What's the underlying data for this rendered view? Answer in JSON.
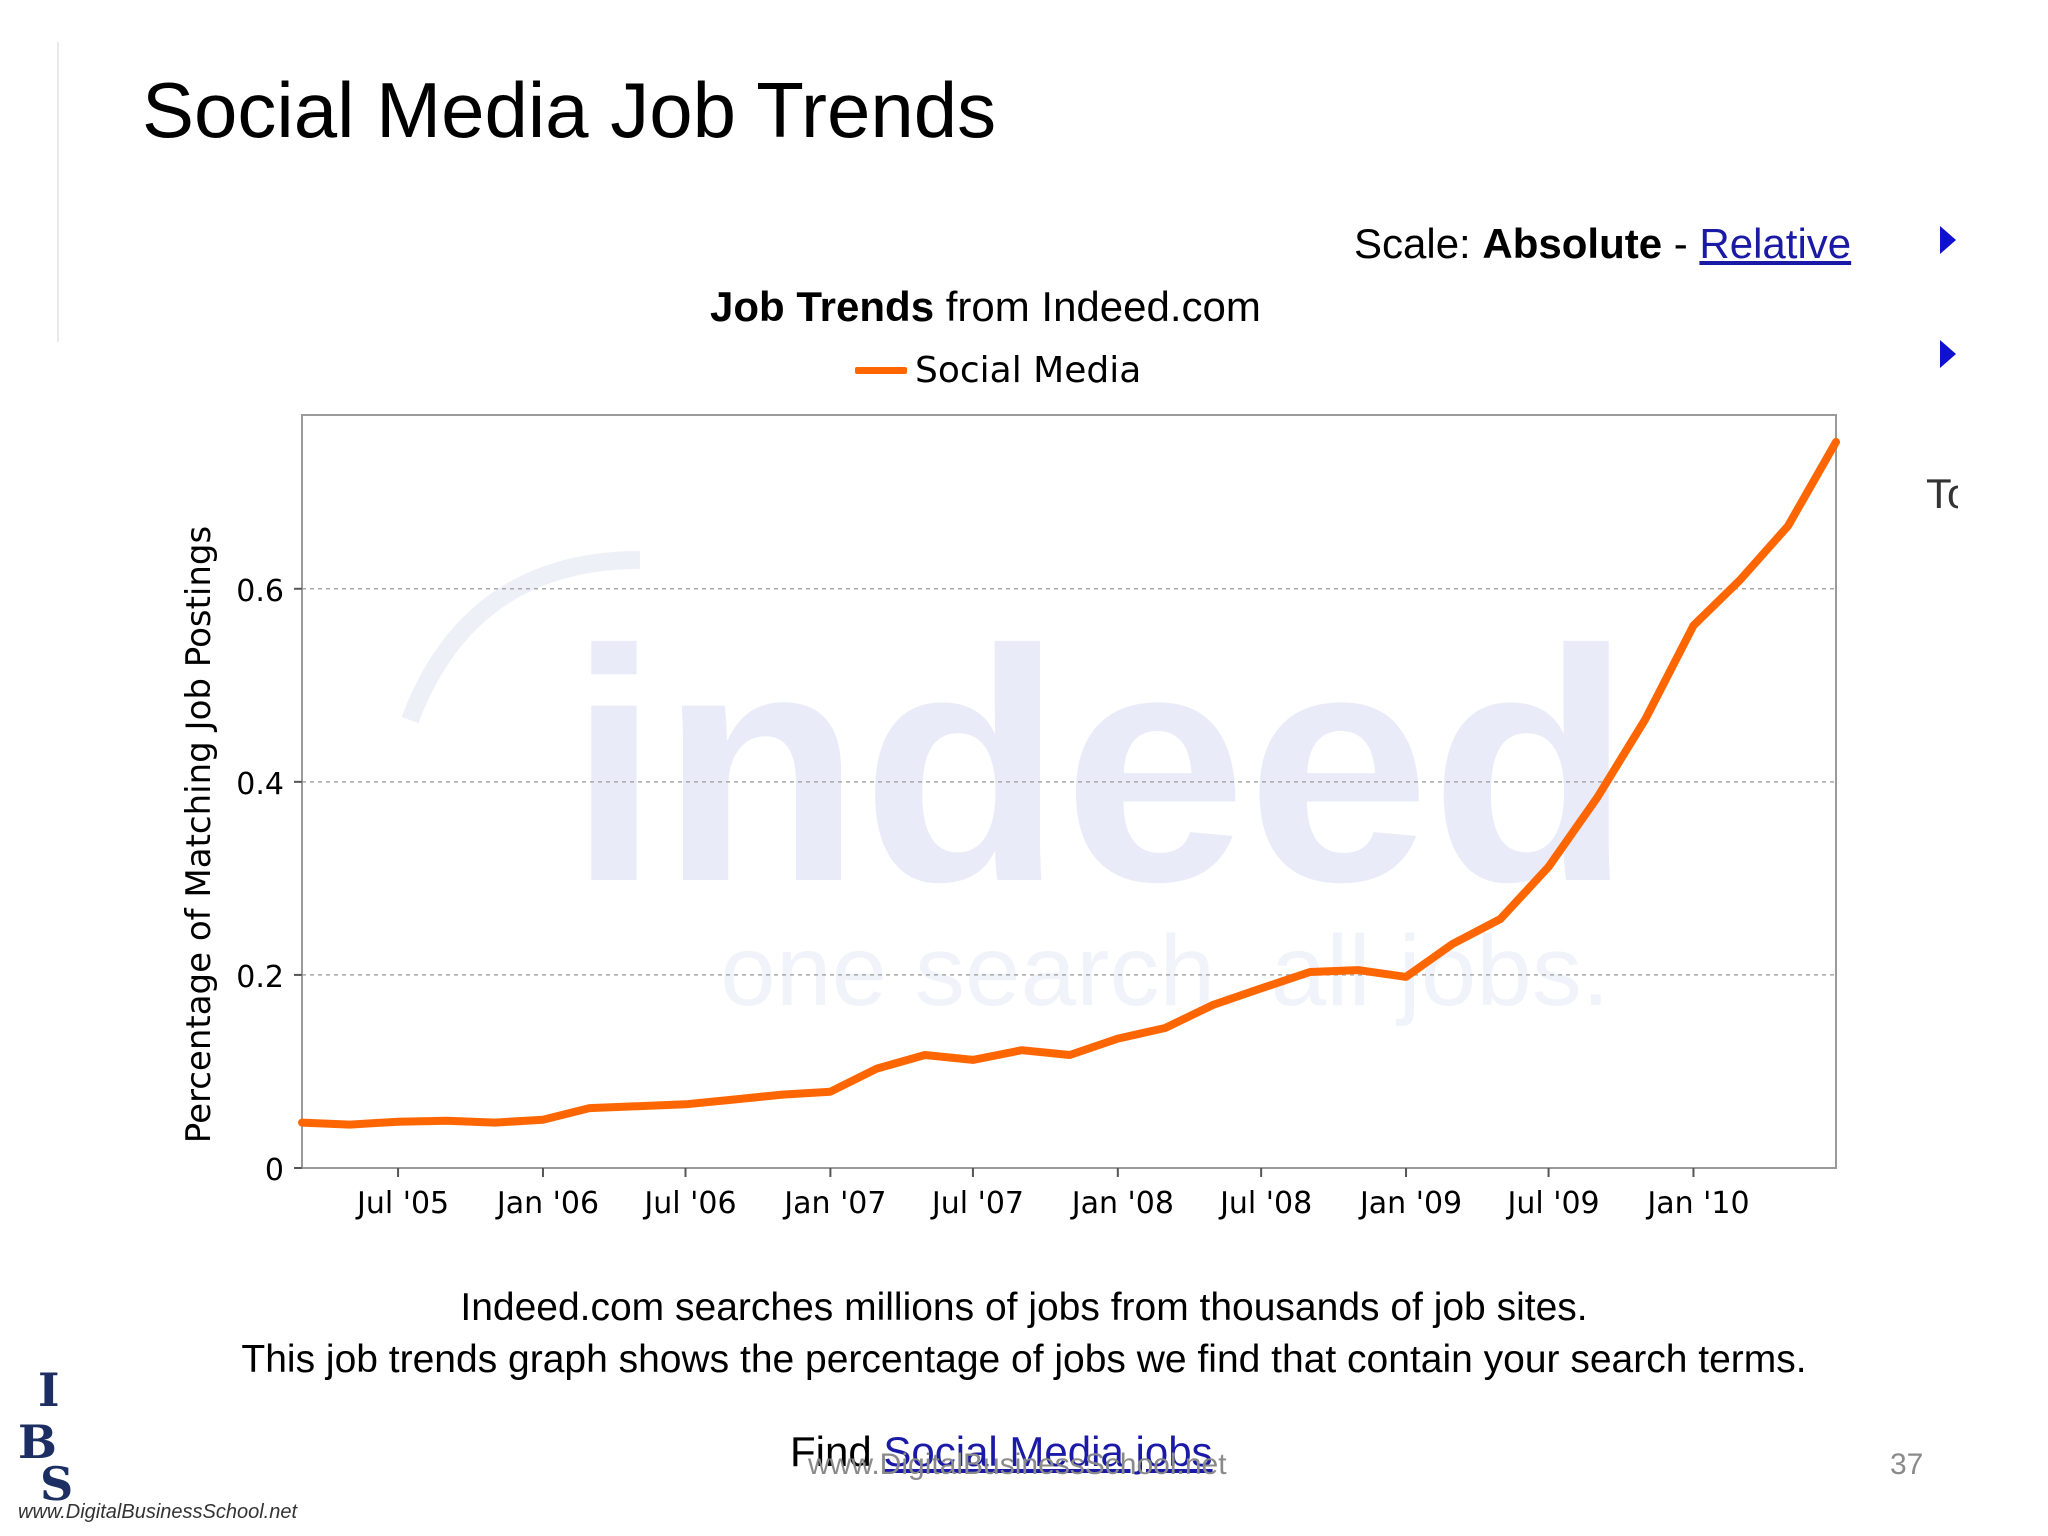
{
  "slide": {
    "title": "Social Media Job Trends",
    "website": "www.DigitalBusinessSchool.net",
    "page_number": "37"
  },
  "scale_control": {
    "prefix": "Scale: ",
    "active": "Absolute",
    "separator": " - ",
    "link": "Relative"
  },
  "cut_text": "To",
  "chart_header": {
    "bold": "Job Trends",
    "rest": " from Indeed.com"
  },
  "watermark": {
    "word": "indeed",
    "tagline": "one search. all jobs."
  },
  "info": {
    "line1": "Indeed.com searches millions of jobs from thousands of job sites.",
    "line2": "This job trends graph shows the percentage of jobs we find that contain your search terms."
  },
  "find": {
    "prefix": "Find ",
    "link": "Social Media jobs"
  },
  "logo": {
    "line1": "I",
    "line2": "B",
    "line3": "S",
    "url": "www.DigitalBusinessSchool.net"
  },
  "colors": {
    "series": "#ff6600",
    "grid": "#a8a8a8",
    "link": "#1a1aa6",
    "watermark": "#e9ecf8"
  },
  "chart_data": {
    "type": "line",
    "title": "",
    "ylabel": "Percentage of Matching Job Postings",
    "xlabel": "",
    "ylim": [
      0,
      0.78
    ],
    "xlim": [
      "2005-03-01",
      "2010-07-01"
    ],
    "yticks": [
      0,
      0.2,
      0.4,
      0.6
    ],
    "ytick_labels": [
      "0",
      "0.2",
      "0.4",
      "0.6"
    ],
    "xticks": [
      "2005-07-01",
      "2006-01-01",
      "2006-07-01",
      "2007-01-01",
      "2007-07-01",
      "2008-01-01",
      "2008-07-01",
      "2009-01-01",
      "2009-07-01",
      "2010-01-01"
    ],
    "xtick_labels": [
      "Jul '05",
      "Jan '06",
      "Jul '06",
      "Jan '07",
      "Jul '07",
      "Jan '08",
      "Jul '08",
      "Jan '09",
      "Jul '09",
      "Jan '10"
    ],
    "grid": true,
    "legend_position": "top-center",
    "series": [
      {
        "name": "Social Media",
        "x": [
          "2005-03-01",
          "2005-05-01",
          "2005-07-01",
          "2005-09-01",
          "2005-11-01",
          "2006-01-01",
          "2006-03-01",
          "2006-05-01",
          "2006-07-01",
          "2006-09-01",
          "2006-11-01",
          "2007-01-01",
          "2007-03-01",
          "2007-05-01",
          "2007-07-01",
          "2007-09-01",
          "2007-11-01",
          "2008-01-01",
          "2008-03-01",
          "2008-05-01",
          "2008-07-01",
          "2008-09-01",
          "2008-11-01",
          "2009-01-01",
          "2009-03-01",
          "2009-05-01",
          "2009-07-01",
          "2009-09-01",
          "2009-11-01",
          "2010-01-01",
          "2010-03-01",
          "2010-05-01",
          "2010-07-01"
        ],
        "y": [
          0.047,
          0.045,
          0.048,
          0.049,
          0.047,
          0.05,
          0.062,
          0.064,
          0.066,
          0.071,
          0.076,
          0.079,
          0.103,
          0.117,
          0.112,
          0.122,
          0.117,
          0.134,
          0.145,
          0.169,
          0.186,
          0.203,
          0.205,
          0.198,
          0.232,
          0.258,
          0.312,
          0.384,
          0.465,
          0.562,
          0.609,
          0.665,
          0.752
        ]
      }
    ]
  }
}
